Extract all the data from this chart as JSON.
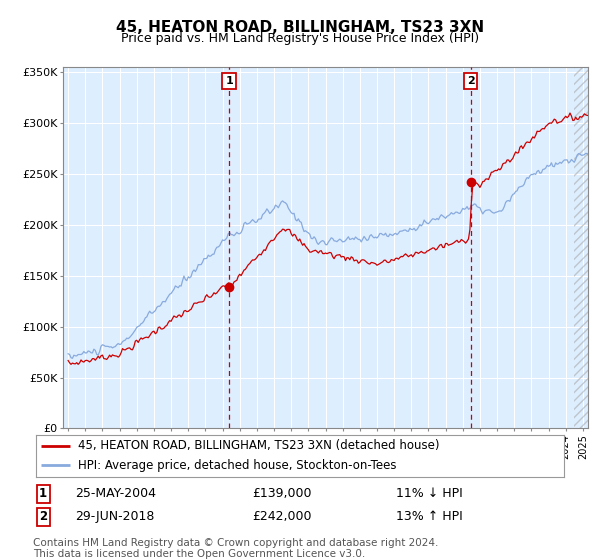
{
  "title": "45, HEATON ROAD, BILLINGHAM, TS23 3XN",
  "subtitle": "Price paid vs. HM Land Registry's House Price Index (HPI)",
  "ylabel_ticks": [
    "£0",
    "£50K",
    "£100K",
    "£150K",
    "£200K",
    "£250K",
    "£300K",
    "£350K"
  ],
  "ytick_values": [
    0,
    50000,
    100000,
    150000,
    200000,
    250000,
    300000,
    350000
  ],
  "ylim": [
    0,
    355000
  ],
  "xlim_start": 1994.7,
  "xlim_end": 2025.3,
  "marker1_x": 2004.38,
  "marker1_y": 139000,
  "marker2_x": 2018.46,
  "marker2_y": 242000,
  "hatch_start": 2024.5,
  "legend_line1": "45, HEATON ROAD, BILLINGHAM, TS23 3XN (detached house)",
  "legend_line2": "HPI: Average price, detached house, Stockton-on-Tees",
  "note1_date": "25-MAY-2004",
  "note1_price": "£139,000",
  "note1_hpi": "11% ↓ HPI",
  "note2_date": "29-JUN-2018",
  "note2_price": "£242,000",
  "note2_hpi": "13% ↑ HPI",
  "footer": "Contains HM Land Registry data © Crown copyright and database right 2024.\nThis data is licensed under the Open Government Licence v3.0.",
  "line_red": "#cc0000",
  "line_blue": "#88aadd",
  "bg_plot": "#ddeeff",
  "bg_fig": "#ffffff",
  "grid_color": "#ffffff",
  "marker_line_color": "#cc0000",
  "title_fontsize": 11,
  "subtitle_fontsize": 9,
  "axis_fontsize": 8,
  "legend_fontsize": 8.5,
  "note_fontsize": 9,
  "footer_fontsize": 7.5
}
